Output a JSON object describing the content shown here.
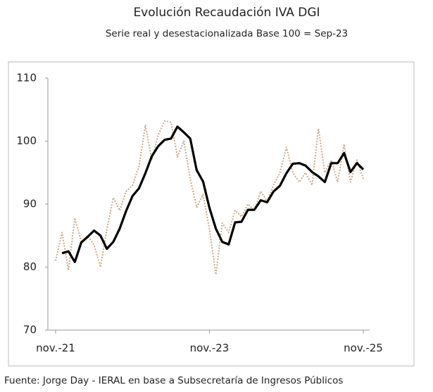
{
  "chart_data": {
    "type": "line",
    "title": "Evolución Recaudación IVA DGI",
    "subtitle": "Serie real y desestacionalizada Base 100 = Sep-23",
    "source": "Fuente: Jorge Day - IERAL en base a Subsecretaría de Ingresos Públicos",
    "categories": [
      "nov.-21",
      null,
      null,
      null,
      null,
      null,
      null,
      null,
      null,
      null,
      null,
      null,
      null,
      null,
      null,
      null,
      null,
      null,
      null,
      null,
      null,
      null,
      null,
      null,
      "nov.-23",
      null,
      null,
      null,
      null,
      null,
      null,
      null,
      null,
      null,
      null,
      null,
      null,
      null,
      null,
      null,
      null,
      null,
      null,
      null,
      null,
      null,
      null,
      null,
      "nov.-25"
    ],
    "series": [
      {
        "color": "#c9a98a",
        "style": "dotted",
        "values": [
          81,
          85.5,
          79.5,
          87.8,
          84,
          85,
          83.5,
          80,
          86,
          91,
          89,
          92,
          93,
          96,
          102.5,
          97,
          101,
          103.2,
          103,
          97.5,
          100,
          94,
          89.5,
          91.5,
          86,
          78.8,
          87,
          85.5,
          89,
          88,
          90,
          89,
          92,
          90.5,
          93,
          95,
          99,
          95,
          93.5,
          95,
          93,
          102,
          95,
          97,
          93.5,
          99.5,
          93.5,
          97,
          94
        ]
      },
      {
        "color": "#000000",
        "style": "solid",
        "values": [
          null,
          82.2,
          82.5,
          80.8,
          83.9,
          84.8,
          85.8,
          85,
          82.9,
          84,
          86.1,
          88.9,
          91.3,
          92.5,
          94.9,
          97.6,
          99.2,
          100.2,
          100.4,
          102.3,
          101.4,
          100.4,
          95.4,
          93.6,
          89.4,
          86.1,
          84,
          83.6,
          87.1,
          87.2,
          89.1,
          89.1,
          90.6,
          90.3,
          92,
          92.9,
          94.9,
          96.4,
          96.5,
          96.1,
          95.1,
          94.4,
          93.5,
          96.5,
          96.5,
          98.1,
          95.1,
          96.5,
          95.5
        ]
      }
    ],
    "ylim": [
      70,
      110
    ],
    "yticks": [
      70,
      80,
      90,
      100,
      110
    ],
    "grid": false
  }
}
